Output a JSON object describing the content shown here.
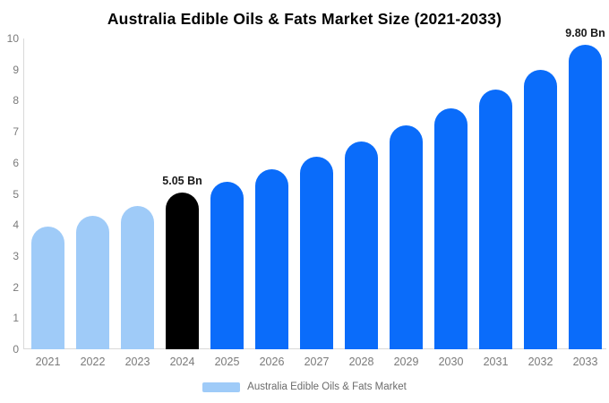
{
  "page": {
    "title": "Australia Edible Oils & Fats Market Size (2021-2033)"
  },
  "chart_data": {
    "type": "bar",
    "title": "Australia Edible Oils & Fats Market Size (2021-2033)",
    "xlabel": "",
    "ylabel": "",
    "ylim": [
      0,
      10
    ],
    "yticks": [
      0,
      1,
      2,
      3,
      4,
      5,
      6,
      7,
      8,
      9,
      10
    ],
    "grid": false,
    "categories": [
      "2021",
      "2022",
      "2023",
      "2024",
      "2025",
      "2026",
      "2027",
      "2028",
      "2029",
      "2030",
      "2031",
      "2032",
      "2033"
    ],
    "values": [
      3.95,
      4.3,
      4.62,
      5.05,
      5.4,
      5.78,
      6.2,
      6.68,
      7.2,
      7.75,
      8.35,
      9.0,
      9.8
    ],
    "point_labels": [
      "",
      "",
      "",
      "5.05 Bn",
      "",
      "",
      "",
      "",
      "",
      "",
      "",
      "",
      "9.80 Bn"
    ],
    "bar_roles": [
      "past",
      "past",
      "past",
      "current",
      "forecast",
      "forecast",
      "forecast",
      "forecast",
      "forecast",
      "forecast",
      "forecast",
      "forecast",
      "forecast"
    ],
    "role_colors": {
      "past": "#9FCBF8",
      "current": "#000000",
      "forecast": "#0A6CFA"
    },
    "legend": {
      "label": "Australia Edible Oils & Fats Market",
      "swatch_color": "#9FCBF8",
      "position": "bottom-center"
    },
    "axis_colors": {
      "tick_text": "#7a7a7a",
      "axis_line": "#d9d9d9"
    }
  }
}
